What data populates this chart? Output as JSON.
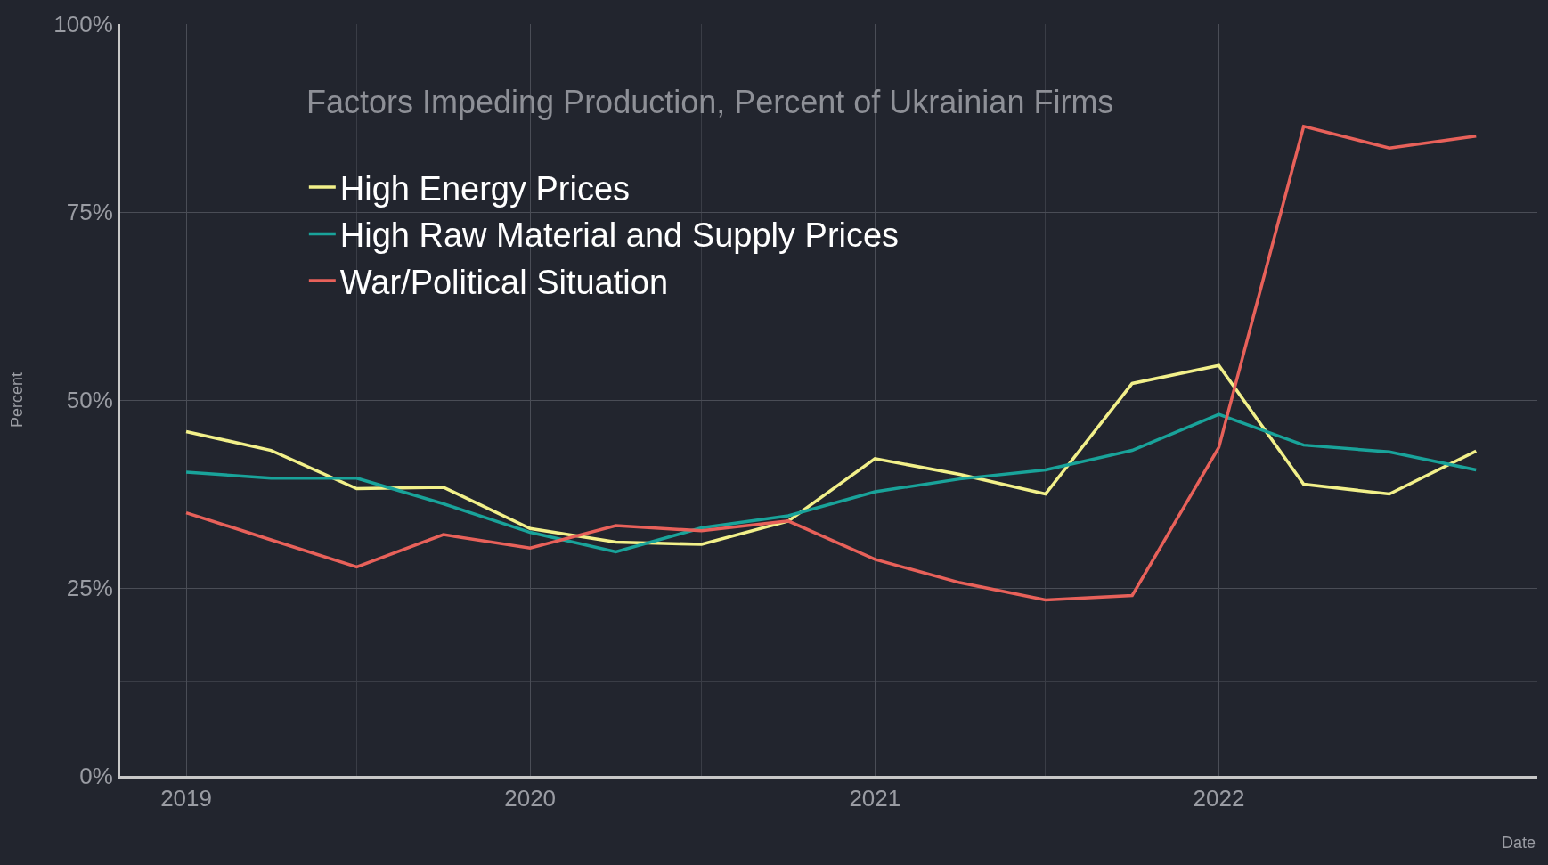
{
  "chart_data": {
    "type": "line",
    "title": "Factors Impeding Production, Percent of Ukrainian Firms",
    "xlabel": "Date",
    "ylabel": "Percent",
    "x": [
      "2019-01-01",
      "2019-04-01",
      "2019-07-01",
      "2019-10-01",
      "2020-01-01",
      "2020-04-01",
      "2020-07-01",
      "2020-10-01",
      "2021-01-01",
      "2021-04-01",
      "2021-07-01",
      "2021-10-01",
      "2022-01-01",
      "2022-04-01",
      "2022-07-01",
      "2022-10-01"
    ],
    "series": [
      {
        "name": "High Energy Prices",
        "color": "#f2f08a",
        "values": [
          45.8,
          43.3,
          38.2,
          38.4,
          32.9,
          31.1,
          30.8,
          33.9,
          42.2,
          40.1,
          37.5,
          52.2,
          54.6,
          38.8,
          37.5,
          43.2
        ]
      },
      {
        "name": "High Raw Material and Supply Prices",
        "color": "#19a39a",
        "values": [
          40.4,
          39.6,
          39.6,
          36.2,
          32.4,
          29.8,
          33.0,
          34.6,
          37.8,
          39.5,
          40.7,
          43.3,
          48.1,
          44.0,
          43.1,
          40.7
        ]
      },
      {
        "name": "War/Political Situation",
        "color": "#e8615a",
        "values": [
          35.0,
          31.4,
          27.8,
          32.1,
          30.3,
          33.3,
          32.6,
          33.9,
          28.8,
          25.7,
          23.4,
          24.0,
          43.7,
          86.4,
          83.5,
          85.1
        ]
      }
    ],
    "xlim": [
      "2018-10-23",
      "2022-12-05"
    ],
    "xticks": [
      {
        "value": "2019-01-01",
        "label": "2019"
      },
      {
        "value": "2020-01-01",
        "label": "2020"
      },
      {
        "value": "2021-01-01",
        "label": "2021"
      },
      {
        "value": "2022-01-01",
        "label": "2022"
      }
    ],
    "ylim": [
      0,
      100
    ],
    "yticks": [
      {
        "value": 0,
        "label": "0%"
      },
      {
        "value": 25,
        "label": "25%"
      },
      {
        "value": 50,
        "label": "50%"
      },
      {
        "value": 75,
        "label": "75%"
      },
      {
        "value": 100,
        "label": "100%"
      }
    ],
    "grid": true,
    "legend": "top left",
    "marker": "none",
    "line_style": "solid"
  }
}
